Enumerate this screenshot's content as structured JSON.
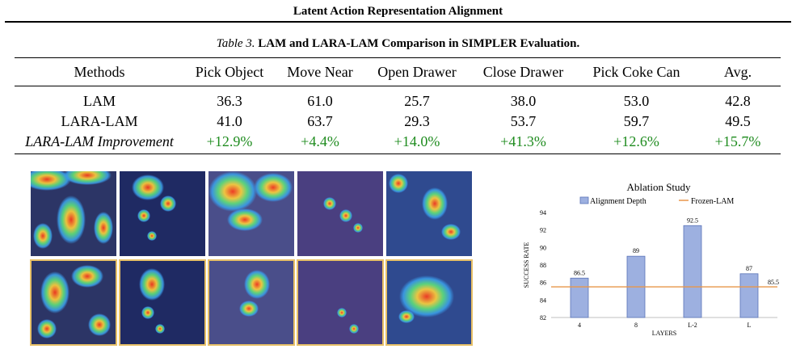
{
  "header": "Latent Action Representation Alignment",
  "caption": {
    "label": "Table 3.",
    "text": "LAM and LARA-LAM Comparison in SIMPLER Evaluation."
  },
  "table": {
    "columns": [
      "Methods",
      "Pick Object",
      "Move Near",
      "Open Drawer",
      "Close Drawer",
      "Pick Coke Can",
      "Avg."
    ],
    "rows": [
      [
        "LAM",
        "36.3",
        "61.0",
        "25.7",
        "38.0",
        "53.0",
        "42.8"
      ],
      [
        "LARA-LAM",
        "41.0",
        "63.7",
        "29.3",
        "53.7",
        "59.7",
        "49.5"
      ],
      [
        "LARA-LAM Improvement",
        "+12.9%",
        "+4.4%",
        "+14.0%",
        "+41.3%",
        "+12.6%",
        "+15.7%"
      ]
    ]
  },
  "colors": {
    "improvement": "#1f8c1f",
    "bar_fill": "#9db0e0",
    "bar_stroke": "#5a73b8",
    "baseline": "#e8964a",
    "highlight_border": "#e7c067"
  },
  "chart_data": {
    "type": "bar",
    "title": "Ablation Study",
    "xlabel": "LAYERS",
    "ylabel": "SUCCESS RATE",
    "categories": [
      "4",
      "8",
      "L-2",
      "L"
    ],
    "series": [
      {
        "name": "Alignment Depth",
        "values": [
          86.5,
          89,
          92.5,
          87
        ]
      }
    ],
    "reference_line": {
      "name": "Frozen-LAM",
      "value": 85.5
    },
    "ylim": [
      82,
      94
    ],
    "yticks": [
      82,
      84,
      86,
      88,
      90,
      92,
      94
    ],
    "legend": "top",
    "grid": false
  }
}
